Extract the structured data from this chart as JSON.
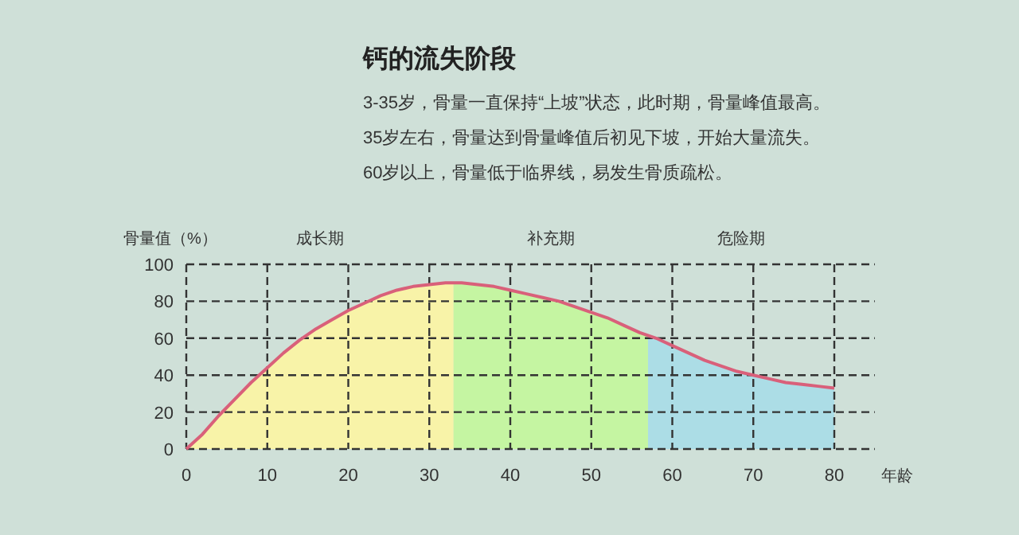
{
  "chart_data": {
    "type": "line",
    "title": "钙的流失阶段",
    "annotations": [
      "3-35岁，骨量一直保持“上坡”状态，此时期，骨量峰值最高。",
      "35岁左右，骨量达到骨量峰值后初见下坡，开始大量流失。",
      "60岁以上，骨量低于临界线，易发生骨质疏松。"
    ],
    "ylabel": "骨量值（%）",
    "xlabel": "年龄",
    "x": [
      0,
      2,
      4,
      6,
      8,
      10,
      12,
      14,
      16,
      18,
      20,
      22,
      24,
      26,
      28,
      30,
      32,
      34,
      36,
      38,
      40,
      42,
      44,
      46,
      48,
      50,
      52,
      54,
      56,
      58,
      60,
      62,
      64,
      66,
      68,
      70,
      72,
      74,
      76,
      78,
      80
    ],
    "series": [
      {
        "color": "#d9607a",
        "values": [
          0,
          8,
          18,
          27,
          36,
          44,
          52,
          59,
          65,
          70,
          75,
          79,
          83,
          86,
          88,
          89,
          90,
          90,
          89,
          88,
          86,
          84,
          82,
          80,
          77,
          74,
          71,
          67,
          63,
          60,
          56,
          52,
          48,
          45,
          42,
          40,
          38,
          36,
          35,
          34,
          33
        ]
      }
    ],
    "bands": [
      {
        "axis": "x",
        "from": 0,
        "to": 33,
        "label": "成长期",
        "color": "#f8f3a8"
      },
      {
        "axis": "x",
        "from": 33,
        "to": 57,
        "label": "补充期",
        "color": "#c5f5a2"
      },
      {
        "axis": "x",
        "from": 57,
        "to": 80,
        "label": "危险期",
        "color": "#acdde6"
      }
    ],
    "xlim": [
      0,
      85
    ],
    "xticks": [
      0,
      10,
      20,
      30,
      40,
      50,
      60,
      70,
      80
    ],
    "ylim": [
      0,
      100
    ],
    "yticks": [
      0,
      20,
      40,
      60,
      80,
      100
    ],
    "grid": true,
    "line_style": "solid"
  }
}
